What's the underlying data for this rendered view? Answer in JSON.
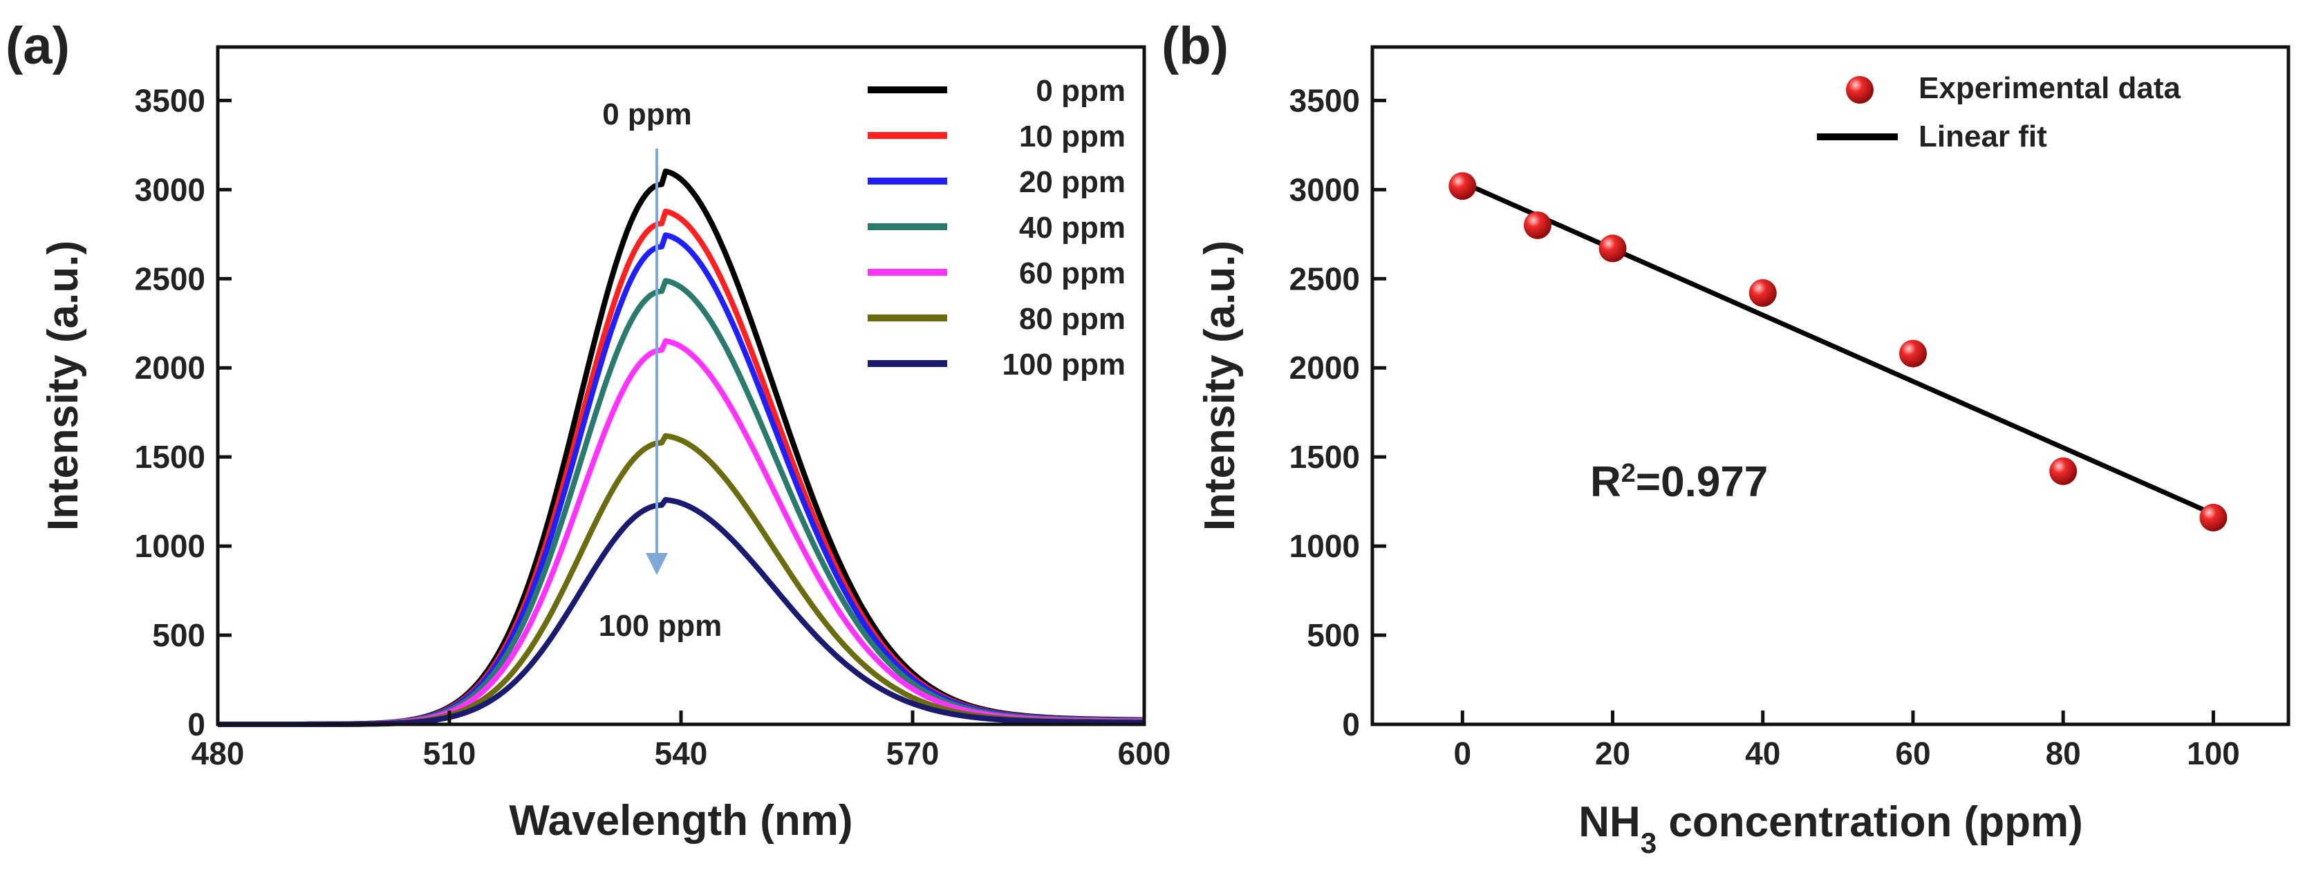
{
  "chart_data": [
    {
      "type": "line",
      "panel": "(a)",
      "xlabel": "Wavelength (nm)",
      "ylabel": "Intensity (a.u.)",
      "xlim": [
        480,
        600
      ],
      "ylim": [
        0,
        3800
      ],
      "xticks": [
        480,
        510,
        540,
        570,
        600
      ],
      "yticks": [
        0,
        500,
        1000,
        1500,
        2000,
        2500,
        3000,
        3500
      ],
      "legend_position": "top-right",
      "peak_nm": 537.5,
      "series": [
        {
          "name": "0 ppm",
          "peak": 3030,
          "color": "#000000"
        },
        {
          "name": "10 ppm",
          "peak": 2810,
          "color": "#ff2020"
        },
        {
          "name": "20 ppm",
          "peak": 2680,
          "color": "#2020ff"
        },
        {
          "name": "40 ppm",
          "peak": 2430,
          "color": "#2a7a6e"
        },
        {
          "name": "60 ppm",
          "peak": 2100,
          "color": "#ff33ff"
        },
        {
          "name": "80 ppm",
          "peak": 1580,
          "color": "#6b6b10"
        },
        {
          "name": "100 ppm",
          "peak": 1230,
          "color": "#1a1a70"
        }
      ],
      "arrow_top_label": "0 ppm",
      "arrow_bottom_label": "100 ppm",
      "arrow_color": "#7fa8d8"
    },
    {
      "type": "scatter",
      "panel": "(b)",
      "xlabel_main": "NH",
      "xlabel_sub": "3",
      "xlabel_rest": " concentration (ppm)",
      "ylabel": "Intensity (a.u.)",
      "xlim": [
        -12,
        110
      ],
      "ylim": [
        0,
        3800
      ],
      "xticks": [
        0,
        20,
        40,
        60,
        80,
        100
      ],
      "yticks": [
        0,
        500,
        1000,
        1500,
        2000,
        2500,
        3000,
        3500
      ],
      "legend_position": "top-right",
      "series": [
        {
          "name": "Experimental data",
          "x": [
            0,
            10,
            20,
            40,
            60,
            80,
            100
          ],
          "y": [
            3020,
            2800,
            2670,
            2420,
            2080,
            1420,
            1160
          ],
          "color": "#e01818"
        },
        {
          "name": "Linear fit",
          "x": [
            0,
            100
          ],
          "y": [
            3040,
            1180
          ],
          "color": "#000000"
        }
      ],
      "r2_label": "R",
      "r2_sup": "2",
      "r2_value": "=0.977"
    }
  ]
}
